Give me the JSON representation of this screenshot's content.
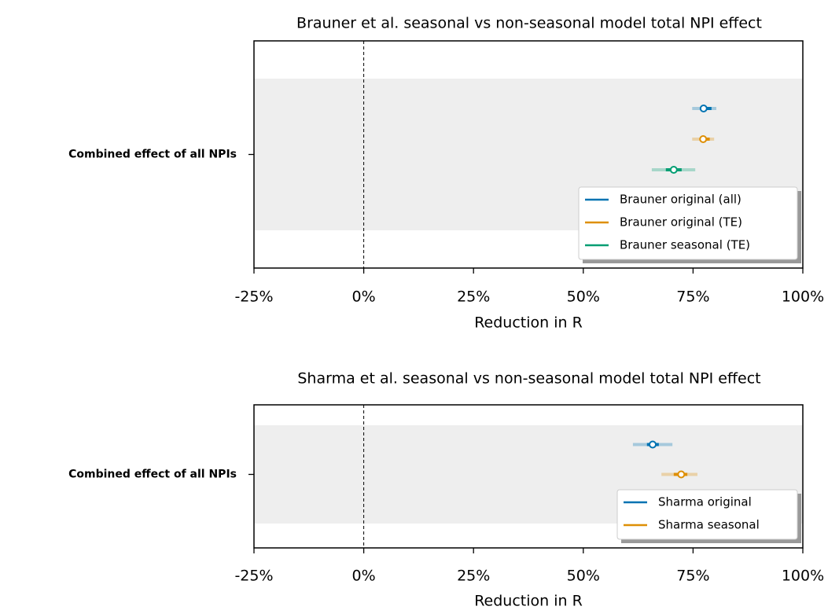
{
  "chart_data": [
    {
      "type": "forest",
      "title": "Brauner et al. seasonal vs non-seasonal model total NPI effect",
      "xlabel": "Reduction in R",
      "categories": [
        "Combined effect of all NPIs"
      ],
      "xlim": [
        -25,
        100
      ],
      "xticks": [
        {
          "value": -25,
          "label": "-25%"
        },
        {
          "value": 0,
          "label": "0%"
        },
        {
          "value": 25,
          "label": "25%"
        },
        {
          "value": 50,
          "label": "50%"
        },
        {
          "value": 75,
          "label": "75%"
        },
        {
          "value": 100,
          "label": "100%"
        }
      ],
      "legend": "lower right",
      "series": [
        {
          "name": "Brauner original (all)",
          "color": "#0173b2",
          "median": 77.4,
          "ci_50": [
            76.9,
            79.2
          ],
          "ci_95": [
            74.8,
            80.3
          ]
        },
        {
          "name": "Brauner original (TE)",
          "color": "#de8f05",
          "median": 77.3,
          "ci_50": [
            76.6,
            78.8
          ],
          "ci_95": [
            74.8,
            79.8
          ]
        },
        {
          "name": "Brauner seasonal (TE)",
          "color": "#029e73",
          "median": 70.6,
          "ci_50": [
            68.8,
            72.4
          ],
          "ci_95": [
            65.6,
            75.5
          ]
        }
      ]
    },
    {
      "type": "forest",
      "title": "Sharma et al. seasonal vs non-seasonal model total NPI effect",
      "xlabel": "Reduction in R",
      "categories": [
        "Combined effect of all NPIs"
      ],
      "xlim": [
        -25,
        100
      ],
      "xticks": [
        {
          "value": -25,
          "label": "-25%"
        },
        {
          "value": 0,
          "label": "0%"
        },
        {
          "value": 25,
          "label": "25%"
        },
        {
          "value": 50,
          "label": "50%"
        },
        {
          "value": 75,
          "label": "75%"
        },
        {
          "value": 100,
          "label": "100%"
        }
      ],
      "legend": "lower right",
      "series": [
        {
          "name": "Sharma original",
          "color": "#0173b2",
          "median": 65.8,
          "ci_50": [
            64.5,
            67.2
          ],
          "ci_95": [
            61.3,
            70.3
          ]
        },
        {
          "name": "Sharma seasonal",
          "color": "#de8f05",
          "median": 72.3,
          "ci_50": [
            70.6,
            73.7
          ],
          "ci_95": [
            67.8,
            76.0
          ]
        }
      ]
    }
  ]
}
